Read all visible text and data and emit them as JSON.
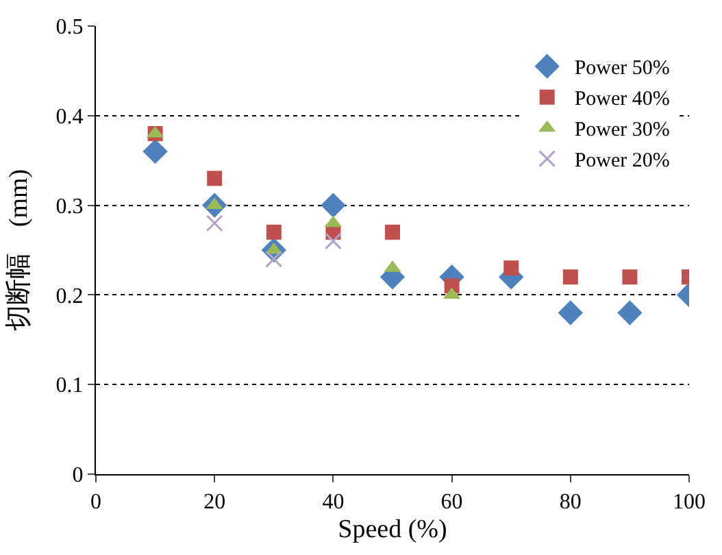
{
  "chart_data": {
    "type": "scatter",
    "xlabel": "Speed (%)",
    "ylabel": "切断幅　(mm)",
    "xlim": [
      0,
      100
    ],
    "xticks": [
      0,
      20,
      40,
      60,
      80,
      100
    ],
    "ylim": [
      0,
      0.5
    ],
    "yticks": [
      0,
      0.1,
      0.2,
      0.3,
      0.4,
      0.5
    ],
    "grid": "y",
    "legend": "top right",
    "series": [
      {
        "name": "Power 50%",
        "color": "#4f81bd",
        "marker": "diamond",
        "x": [
          10,
          20,
          30,
          40,
          50,
          60,
          70,
          80,
          90,
          100
        ],
        "values": [
          0.36,
          0.3,
          0.25,
          0.3,
          0.22,
          0.22,
          0.22,
          0.18,
          0.18,
          0.2
        ]
      },
      {
        "name": "Power 40%",
        "color": "#c0504d",
        "marker": "square",
        "x": [
          10,
          20,
          30,
          40,
          50,
          60,
          70,
          80,
          90,
          100
        ],
        "values": [
          0.38,
          0.33,
          0.27,
          0.27,
          0.27,
          0.21,
          0.23,
          0.22,
          0.22,
          0.22
        ]
      },
      {
        "name": "Power 30%",
        "color": "#9bbb59",
        "marker": "triangle",
        "x": [
          10,
          20,
          30,
          40,
          50,
          60
        ],
        "values": [
          0.38,
          0.3,
          0.25,
          0.28,
          0.23,
          0.2
        ]
      },
      {
        "name": "Power 20%",
        "color": "#b3a2c7",
        "marker": "cross",
        "x": [
          20,
          30,
          40
        ],
        "values": [
          0.28,
          0.24,
          0.26
        ]
      }
    ]
  }
}
